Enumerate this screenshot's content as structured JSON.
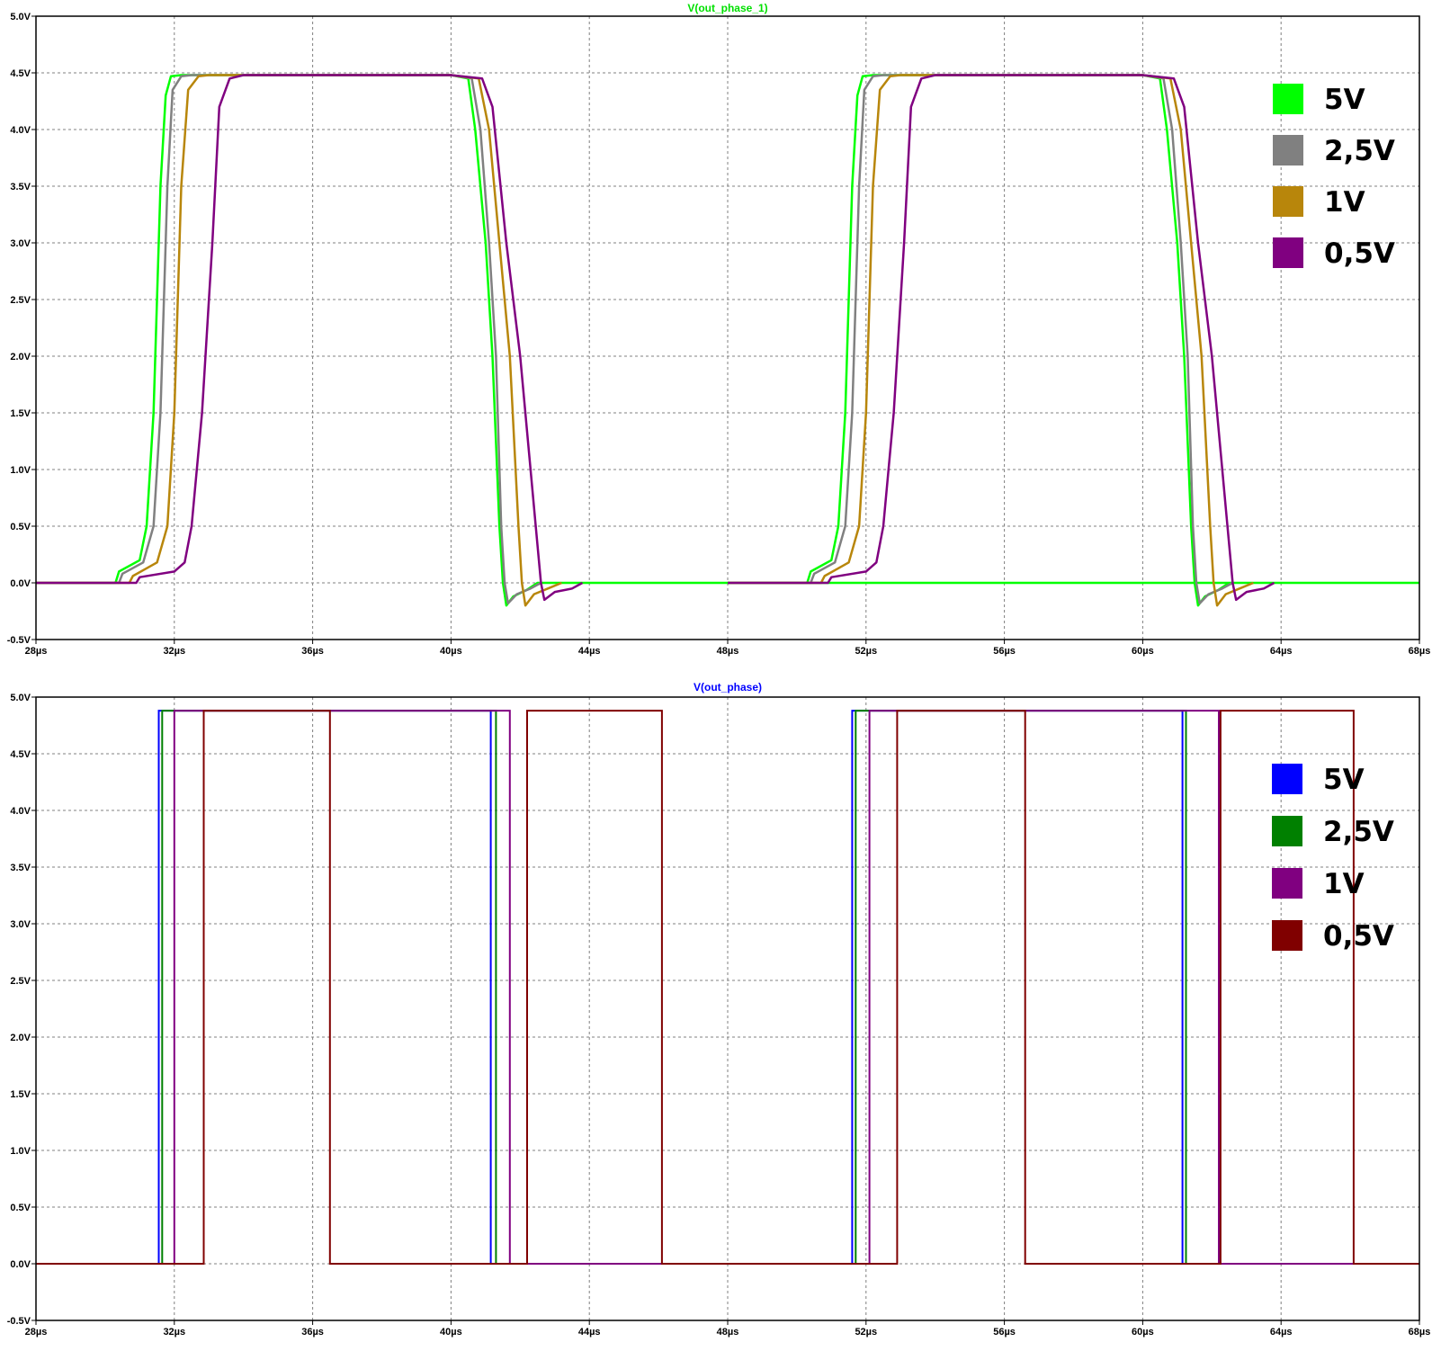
{
  "chart_data": [
    {
      "type": "line",
      "title": "V(out_phase_1)",
      "title_color": "#00e000",
      "xlabel": "",
      "ylabel": "",
      "xlim": [
        28,
        68
      ],
      "ylim": [
        -0.5,
        5.0
      ],
      "x_unit": "µs",
      "grid": true,
      "legend_placement": "top-right",
      "x_ticks": [
        "28µs",
        "32µs",
        "36µs",
        "40µs",
        "44µs",
        "48µs",
        "52µs",
        "56µs",
        "60µs",
        "64µs",
        "68µs"
      ],
      "x_tick_values": [
        28,
        32,
        36,
        40,
        44,
        48,
        52,
        56,
        60,
        64,
        68
      ],
      "y_ticks": [
        "5.0V",
        "4.5V",
        "4.0V",
        "3.5V",
        "3.0V",
        "2.5V",
        "2.0V",
        "1.5V",
        "1.0V",
        "0.5V",
        "0.0V",
        "-0.5V"
      ],
      "y_tick_values": [
        5.0,
        4.5,
        4.0,
        3.5,
        3.0,
        2.5,
        2.0,
        1.5,
        1.0,
        0.5,
        0.0,
        -0.5
      ],
      "series": [
        {
          "name": "5V",
          "color": "#00ff00",
          "points": [
            [
              28,
              0
            ],
            [
              30.3,
              0
            ],
            [
              30.4,
              0.1
            ],
            [
              31.0,
              0.2
            ],
            [
              31.2,
              0.5
            ],
            [
              31.4,
              1.5
            ],
            [
              31.6,
              3.5
            ],
            [
              31.75,
              4.3
            ],
            [
              31.9,
              4.47
            ],
            [
              32.2,
              4.48
            ],
            [
              40,
              4.48
            ],
            [
              40.5,
              4.45
            ],
            [
              40.7,
              4.0
            ],
            [
              41.0,
              3.0
            ],
            [
              41.2,
              2.0
            ],
            [
              41.4,
              0.5
            ],
            [
              41.5,
              0.0
            ],
            [
              41.6,
              -0.2
            ],
            [
              41.8,
              -0.12
            ],
            [
              42.2,
              -0.06
            ],
            [
              42.5,
              0
            ],
            [
              68,
              0
            ]
          ],
          "points_2": [
            [
              48,
              0
            ],
            [
              50.3,
              0
            ],
            [
              50.4,
              0.1
            ],
            [
              51.0,
              0.2
            ],
            [
              51.2,
              0.5
            ],
            [
              51.4,
              1.5
            ],
            [
              51.6,
              3.5
            ],
            [
              51.75,
              4.3
            ],
            [
              51.9,
              4.47
            ],
            [
              52.2,
              4.48
            ],
            [
              60,
              4.48
            ],
            [
              60.5,
              4.45
            ],
            [
              60.7,
              4.0
            ],
            [
              61.0,
              3.0
            ],
            [
              61.2,
              2.0
            ],
            [
              61.4,
              0.5
            ],
            [
              61.5,
              0.0
            ],
            [
              61.6,
              -0.2
            ],
            [
              61.8,
              -0.12
            ],
            [
              62.2,
              -0.06
            ],
            [
              62.5,
              0
            ]
          ]
        },
        {
          "name": "2,5V",
          "color": "#808080",
          "points": [
            [
              28,
              0
            ],
            [
              30.4,
              0
            ],
            [
              30.5,
              0.08
            ],
            [
              31.1,
              0.18
            ],
            [
              31.4,
              0.5
            ],
            [
              31.6,
              1.5
            ],
            [
              31.8,
              3.5
            ],
            [
              31.95,
              4.35
            ],
            [
              32.2,
              4.47
            ],
            [
              32.5,
              4.48
            ],
            [
              40,
              4.48
            ],
            [
              40.6,
              4.45
            ],
            [
              40.85,
              4.0
            ],
            [
              41.1,
              3.0
            ],
            [
              41.3,
              2.0
            ],
            [
              41.45,
              0.5
            ],
            [
              41.55,
              0.0
            ],
            [
              41.65,
              -0.18
            ],
            [
              41.9,
              -0.1
            ],
            [
              42.3,
              -0.05
            ],
            [
              42.6,
              0
            ]
          ],
          "points_2": [
            [
              48,
              0
            ],
            [
              50.4,
              0
            ],
            [
              50.5,
              0.08
            ],
            [
              51.1,
              0.18
            ],
            [
              51.4,
              0.5
            ],
            [
              51.6,
              1.5
            ],
            [
              51.8,
              3.5
            ],
            [
              51.95,
              4.35
            ],
            [
              52.2,
              4.47
            ],
            [
              52.5,
              4.48
            ],
            [
              60,
              4.48
            ],
            [
              60.6,
              4.45
            ],
            [
              60.85,
              4.0
            ],
            [
              61.1,
              3.0
            ],
            [
              61.3,
              2.0
            ],
            [
              61.45,
              0.5
            ],
            [
              61.55,
              0.0
            ],
            [
              61.65,
              -0.18
            ],
            [
              61.9,
              -0.1
            ],
            [
              62.3,
              -0.05
            ],
            [
              62.6,
              0
            ]
          ]
        },
        {
          "name": "1V",
          "color": "#b8860b",
          "points": [
            [
              28,
              0
            ],
            [
              30.7,
              0
            ],
            [
              30.8,
              0.06
            ],
            [
              31.5,
              0.18
            ],
            [
              31.8,
              0.5
            ],
            [
              32.0,
              1.5
            ],
            [
              32.2,
              3.5
            ],
            [
              32.4,
              4.35
            ],
            [
              32.7,
              4.47
            ],
            [
              33.0,
              4.48
            ],
            [
              40,
              4.48
            ],
            [
              40.8,
              4.45
            ],
            [
              41.1,
              4.0
            ],
            [
              41.4,
              3.0
            ],
            [
              41.7,
              2.0
            ],
            [
              41.95,
              0.5
            ],
            [
              42.05,
              0.0
            ],
            [
              42.15,
              -0.2
            ],
            [
              42.4,
              -0.1
            ],
            [
              42.8,
              -0.05
            ],
            [
              43.2,
              0
            ]
          ],
          "points_2": [
            [
              48,
              0
            ],
            [
              50.7,
              0
            ],
            [
              50.8,
              0.06
            ],
            [
              51.5,
              0.18
            ],
            [
              51.8,
              0.5
            ],
            [
              52.0,
              1.5
            ],
            [
              52.2,
              3.5
            ],
            [
              52.4,
              4.35
            ],
            [
              52.7,
              4.47
            ],
            [
              53.0,
              4.48
            ],
            [
              60,
              4.48
            ],
            [
              60.8,
              4.45
            ],
            [
              61.1,
              4.0
            ],
            [
              61.4,
              3.0
            ],
            [
              61.7,
              2.0
            ],
            [
              61.95,
              0.5
            ],
            [
              62.05,
              0.0
            ],
            [
              62.15,
              -0.2
            ],
            [
              62.4,
              -0.1
            ],
            [
              62.8,
              -0.05
            ],
            [
              63.2,
              0
            ]
          ]
        },
        {
          "name": "0,5V",
          "color": "#800080",
          "points": [
            [
              28,
              0
            ],
            [
              30.9,
              0
            ],
            [
              31.0,
              0.05
            ],
            [
              32.0,
              0.1
            ],
            [
              32.3,
              0.18
            ],
            [
              32.5,
              0.5
            ],
            [
              32.8,
              1.5
            ],
            [
              33.1,
              3.0
            ],
            [
              33.3,
              4.2
            ],
            [
              33.6,
              4.45
            ],
            [
              34.0,
              4.48
            ],
            [
              40,
              4.48
            ],
            [
              40.9,
              4.45
            ],
            [
              41.2,
              4.2
            ],
            [
              41.6,
              3.0
            ],
            [
              42.0,
              2.0
            ],
            [
              42.45,
              0.5
            ],
            [
              42.6,
              0.0
            ],
            [
              42.7,
              -0.15
            ],
            [
              43.0,
              -0.08
            ],
            [
              43.5,
              -0.05
            ],
            [
              43.8,
              0
            ]
          ],
          "points_2": [
            [
              48,
              0
            ],
            [
              50.9,
              0
            ],
            [
              51.0,
              0.05
            ],
            [
              52.0,
              0.1
            ],
            [
              52.3,
              0.18
            ],
            [
              52.5,
              0.5
            ],
            [
              52.8,
              1.5
            ],
            [
              53.1,
              3.0
            ],
            [
              53.3,
              4.2
            ],
            [
              53.6,
              4.45
            ],
            [
              54.0,
              4.48
            ],
            [
              60,
              4.48
            ],
            [
              60.9,
              4.45
            ],
            [
              61.2,
              4.2
            ],
            [
              61.6,
              3.0
            ],
            [
              62.0,
              2.0
            ],
            [
              62.45,
              0.5
            ],
            [
              62.6,
              0.0
            ],
            [
              62.7,
              -0.15
            ],
            [
              63.0,
              -0.08
            ],
            [
              63.5,
              -0.05
            ],
            [
              63.8,
              0
            ]
          ]
        }
      ]
    },
    {
      "type": "line",
      "title": "V(out_phase)",
      "title_color": "#0000ff",
      "xlabel": "",
      "ylabel": "",
      "xlim": [
        28,
        68
      ],
      "ylim": [
        -0.5,
        5.0
      ],
      "x_unit": "µs",
      "grid": true,
      "legend_placement": "top-right",
      "x_ticks": [
        "28µs",
        "32µs",
        "36µs",
        "40µs",
        "44µs",
        "48µs",
        "52µs",
        "56µs",
        "60µs",
        "64µs",
        "68µs"
      ],
      "x_tick_values": [
        28,
        32,
        36,
        40,
        44,
        48,
        52,
        56,
        60,
        64,
        68
      ],
      "y_ticks": [
        "5.0V",
        "4.5V",
        "4.0V",
        "3.5V",
        "3.0V",
        "2.5V",
        "2.0V",
        "1.5V",
        "1.0V",
        "0.5V",
        "0.0V",
        "-0.5V"
      ],
      "y_tick_values": [
        5.0,
        4.5,
        4.0,
        3.5,
        3.0,
        2.5,
        2.0,
        1.5,
        1.0,
        0.5,
        0.0,
        -0.5
      ],
      "series": [
        {
          "name": "5V",
          "color": "#0000ff",
          "high": 4.88,
          "low": 0.0,
          "edges": [
            [
              31.55,
              41.15
            ],
            [
              51.6,
              61.15
            ]
          ],
          "end": 68
        },
        {
          "name": "2,5V",
          "color": "#008000",
          "high": 4.88,
          "low": 0.0,
          "edges": [
            [
              31.65,
              41.3
            ],
            [
              51.7,
              61.25
            ]
          ],
          "end": 68
        },
        {
          "name": "1V",
          "color": "#800080",
          "high": 4.88,
          "low": 0.0,
          "edges": [
            [
              32.0,
              41.7
            ],
            [
              52.1,
              62.2
            ]
          ],
          "end": 68
        },
        {
          "name": "0,5V",
          "color": "#800000",
          "high": 4.88,
          "low": 0.0,
          "edges": [
            [
              32.85,
              36.5
            ],
            [
              42.2,
              46.1
            ],
            [
              52.9,
              56.6
            ],
            [
              62.25,
              66.1
            ]
          ],
          "end": 68
        }
      ]
    }
  ]
}
